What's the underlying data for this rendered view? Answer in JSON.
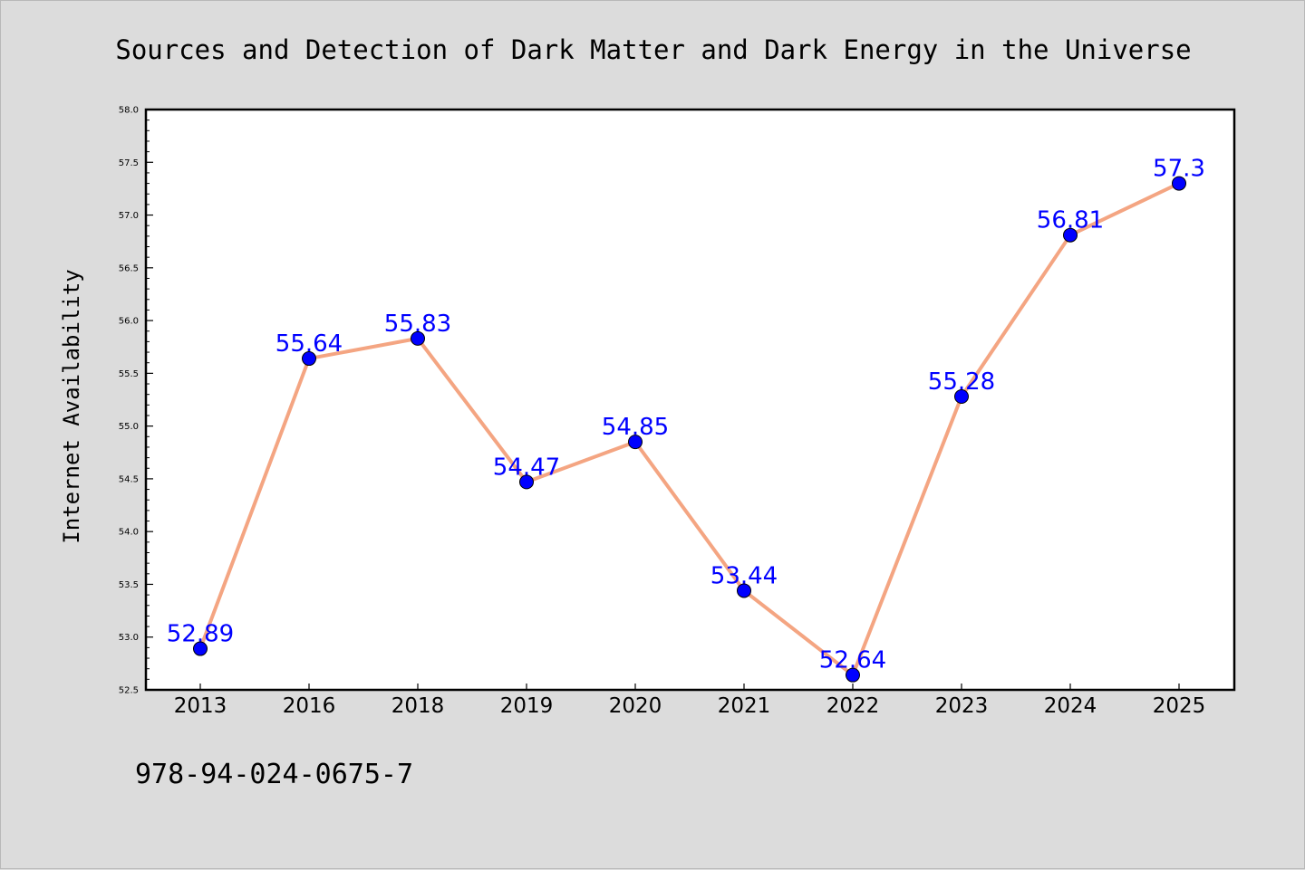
{
  "chart_data": {
    "type": "line",
    "title": "Sources and Detection of Dark Matter and Dark Energy in the Universe",
    "xlabel": "",
    "ylabel": "Internet Availability",
    "categories": [
      "2013",
      "2016",
      "2018",
      "2019",
      "2020",
      "2021",
      "2022",
      "2023",
      "2024",
      "2025"
    ],
    "series": [
      {
        "values": [
          52.89,
          55.64,
          55.83,
          54.47,
          54.85,
          53.44,
          52.64,
          55.28,
          56.81,
          57.3
        ],
        "labels": [
          "52.89",
          "55.64",
          "55.83",
          "54.47",
          "54.85",
          "53.44",
          "52.64",
          "55.28",
          "56.81",
          "57.3"
        ]
      }
    ],
    "ylim": [
      52.5,
      58.0
    ],
    "yticks": [
      "52.5",
      "53.0",
      "53.5",
      "54.0",
      "54.5",
      "55.0",
      "55.5",
      "56.0",
      "56.5",
      "57.0",
      "57.5",
      "58.0"
    ],
    "grid": false,
    "legend": "none",
    "colors": {
      "line": "#f4a582",
      "marker": "#0000ff",
      "label": "#0000ff",
      "background": "#dcdcdc",
      "plot_background": "#ffffff"
    }
  },
  "footer": {
    "isbn": "978-94-024-0675-7"
  }
}
